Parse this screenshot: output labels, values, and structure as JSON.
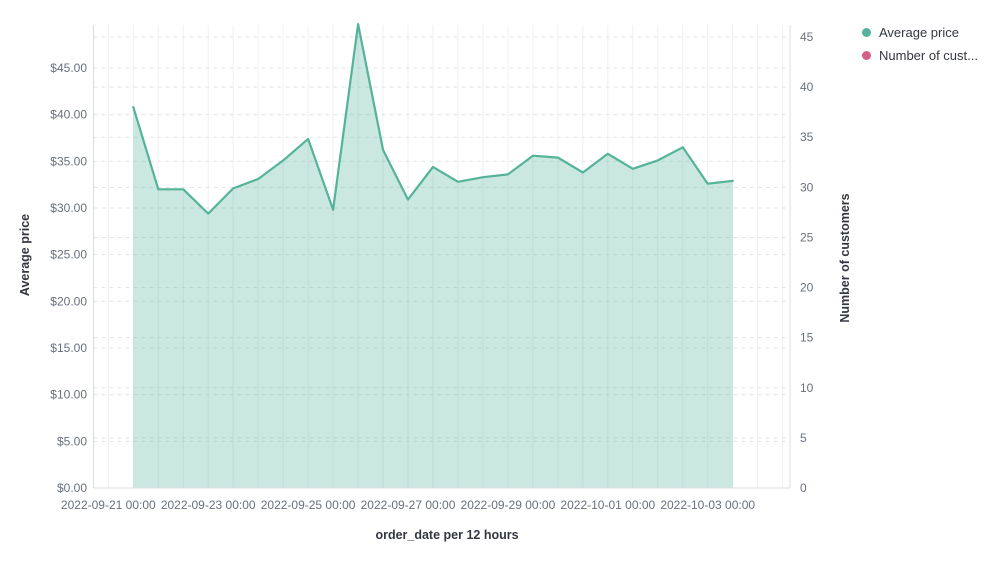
{
  "chart": {
    "legend_items": [
      {
        "label": "Average price",
        "color": "#54B399"
      },
      {
        "label": "Number of cust...",
        "color": "#D36086"
      }
    ],
    "axes": {
      "left": {
        "title": "Average price",
        "ticks": [
          "$0.00",
          "$5.00",
          "$10.00",
          "$15.00",
          "$20.00",
          "$25.00",
          "$30.00",
          "$35.00",
          "$40.00",
          "$45.00"
        ]
      },
      "right": {
        "title": "Number of customers",
        "ticks": [
          "0",
          "5",
          "10",
          "15",
          "20",
          "25",
          "30",
          "35",
          "40",
          "45"
        ]
      },
      "bottom": {
        "title": "order_date per 12 hours",
        "ticks": [
          "2022-09-21 00:00",
          "2022-09-23 00:00",
          "2022-09-25 00:00",
          "2022-09-27 00:00",
          "2022-09-29 00:00",
          "2022-10-01 00:00",
          "2022-10-03 00:00"
        ]
      }
    },
    "colors": {
      "line": "#54B399",
      "fill": "rgba(84,179,153,0.3)",
      "rose": "#D36086",
      "tick_text": "#69707D",
      "title_text": "#343741",
      "grid_dashed": "#E0E4EA",
      "grid_vertical": "#EDF0F4",
      "axis_line": "#D8DDE5"
    }
  },
  "chart_data": {
    "type": "area",
    "title": "",
    "xlabel": "order_date per 12 hours",
    "ylabel_left": "Average price",
    "ylabel_right": "Number of customers",
    "ylim_left": [
      0,
      49.6
    ],
    "ylim_right": [
      0,
      46.2
    ],
    "grid": true,
    "legend_position": "top-right",
    "x_interval": "12 hours",
    "x": [
      "2022-09-21 12:00",
      "2022-09-22 00:00",
      "2022-09-22 12:00",
      "2022-09-23 00:00",
      "2022-09-23 12:00",
      "2022-09-24 00:00",
      "2022-09-24 12:00",
      "2022-09-25 00:00",
      "2022-09-25 12:00",
      "2022-09-26 00:00",
      "2022-09-26 12:00",
      "2022-09-27 00:00",
      "2022-09-27 12:00",
      "2022-09-28 00:00",
      "2022-09-28 12:00",
      "2022-09-29 00:00",
      "2022-09-29 12:00",
      "2022-09-30 00:00",
      "2022-09-30 12:00",
      "2022-10-01 00:00",
      "2022-10-01 12:00",
      "2022-10-02 00:00",
      "2022-10-02 12:00",
      "2022-10-03 00:00",
      "2022-10-03 12:00"
    ],
    "series": [
      {
        "name": "Average price",
        "axis": "left",
        "color": "#54B399",
        "values": [
          40.8,
          32.0,
          32.0,
          29.4,
          32.1,
          33.1,
          35.1,
          37.4,
          29.8,
          49.7,
          36.2,
          30.9,
          34.4,
          32.8,
          33.3,
          33.6,
          35.6,
          35.4,
          33.8,
          35.8,
          34.2,
          35.1,
          36.5,
          32.6,
          32.9
        ]
      },
      {
        "name": "Number of customers",
        "axis": "right",
        "color": "#D36086",
        "values": []
      }
    ]
  }
}
